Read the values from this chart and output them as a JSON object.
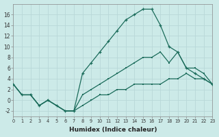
{
  "xlabel": "Humidex (Indice chaleur)",
  "bg_color": "#cceae8",
  "line_color": "#1a6b5a",
  "grid_color": "#b8d8d8",
  "hours": [
    0,
    1,
    2,
    3,
    4,
    5,
    6,
    7,
    8,
    9,
    10,
    11,
    12,
    13,
    14,
    15,
    16,
    17,
    18,
    19,
    20,
    21,
    22,
    23
  ],
  "line_max": [
    3,
    1,
    1,
    -1,
    0,
    -1,
    -2,
    -2,
    5,
    7,
    9,
    11,
    13,
    15,
    16,
    17,
    17,
    14,
    10,
    9,
    6,
    5,
    4,
    3
  ],
  "line_mean": [
    3,
    1,
    1,
    -1,
    0,
    -1,
    -2,
    -2,
    1,
    2,
    3,
    4,
    5,
    6,
    7,
    8,
    8,
    9,
    7,
    9,
    6,
    6,
    5,
    3
  ],
  "line_min": [
    3,
    1,
    1,
    -1,
    0,
    -1,
    -2,
    -2,
    -1,
    0,
    1,
    1,
    2,
    2,
    3,
    3,
    3,
    3,
    4,
    4,
    5,
    4,
    4,
    3
  ],
  "xlim": [
    0,
    23
  ],
  "ylim": [
    -3,
    18
  ],
  "yticks": [
    -2,
    0,
    2,
    4,
    6,
    8,
    10,
    12,
    14,
    16
  ],
  "xticks": [
    0,
    1,
    2,
    3,
    4,
    5,
    6,
    7,
    8,
    9,
    10,
    11,
    12,
    13,
    14,
    15,
    16,
    17,
    18,
    19,
    20,
    21,
    22,
    23
  ]
}
